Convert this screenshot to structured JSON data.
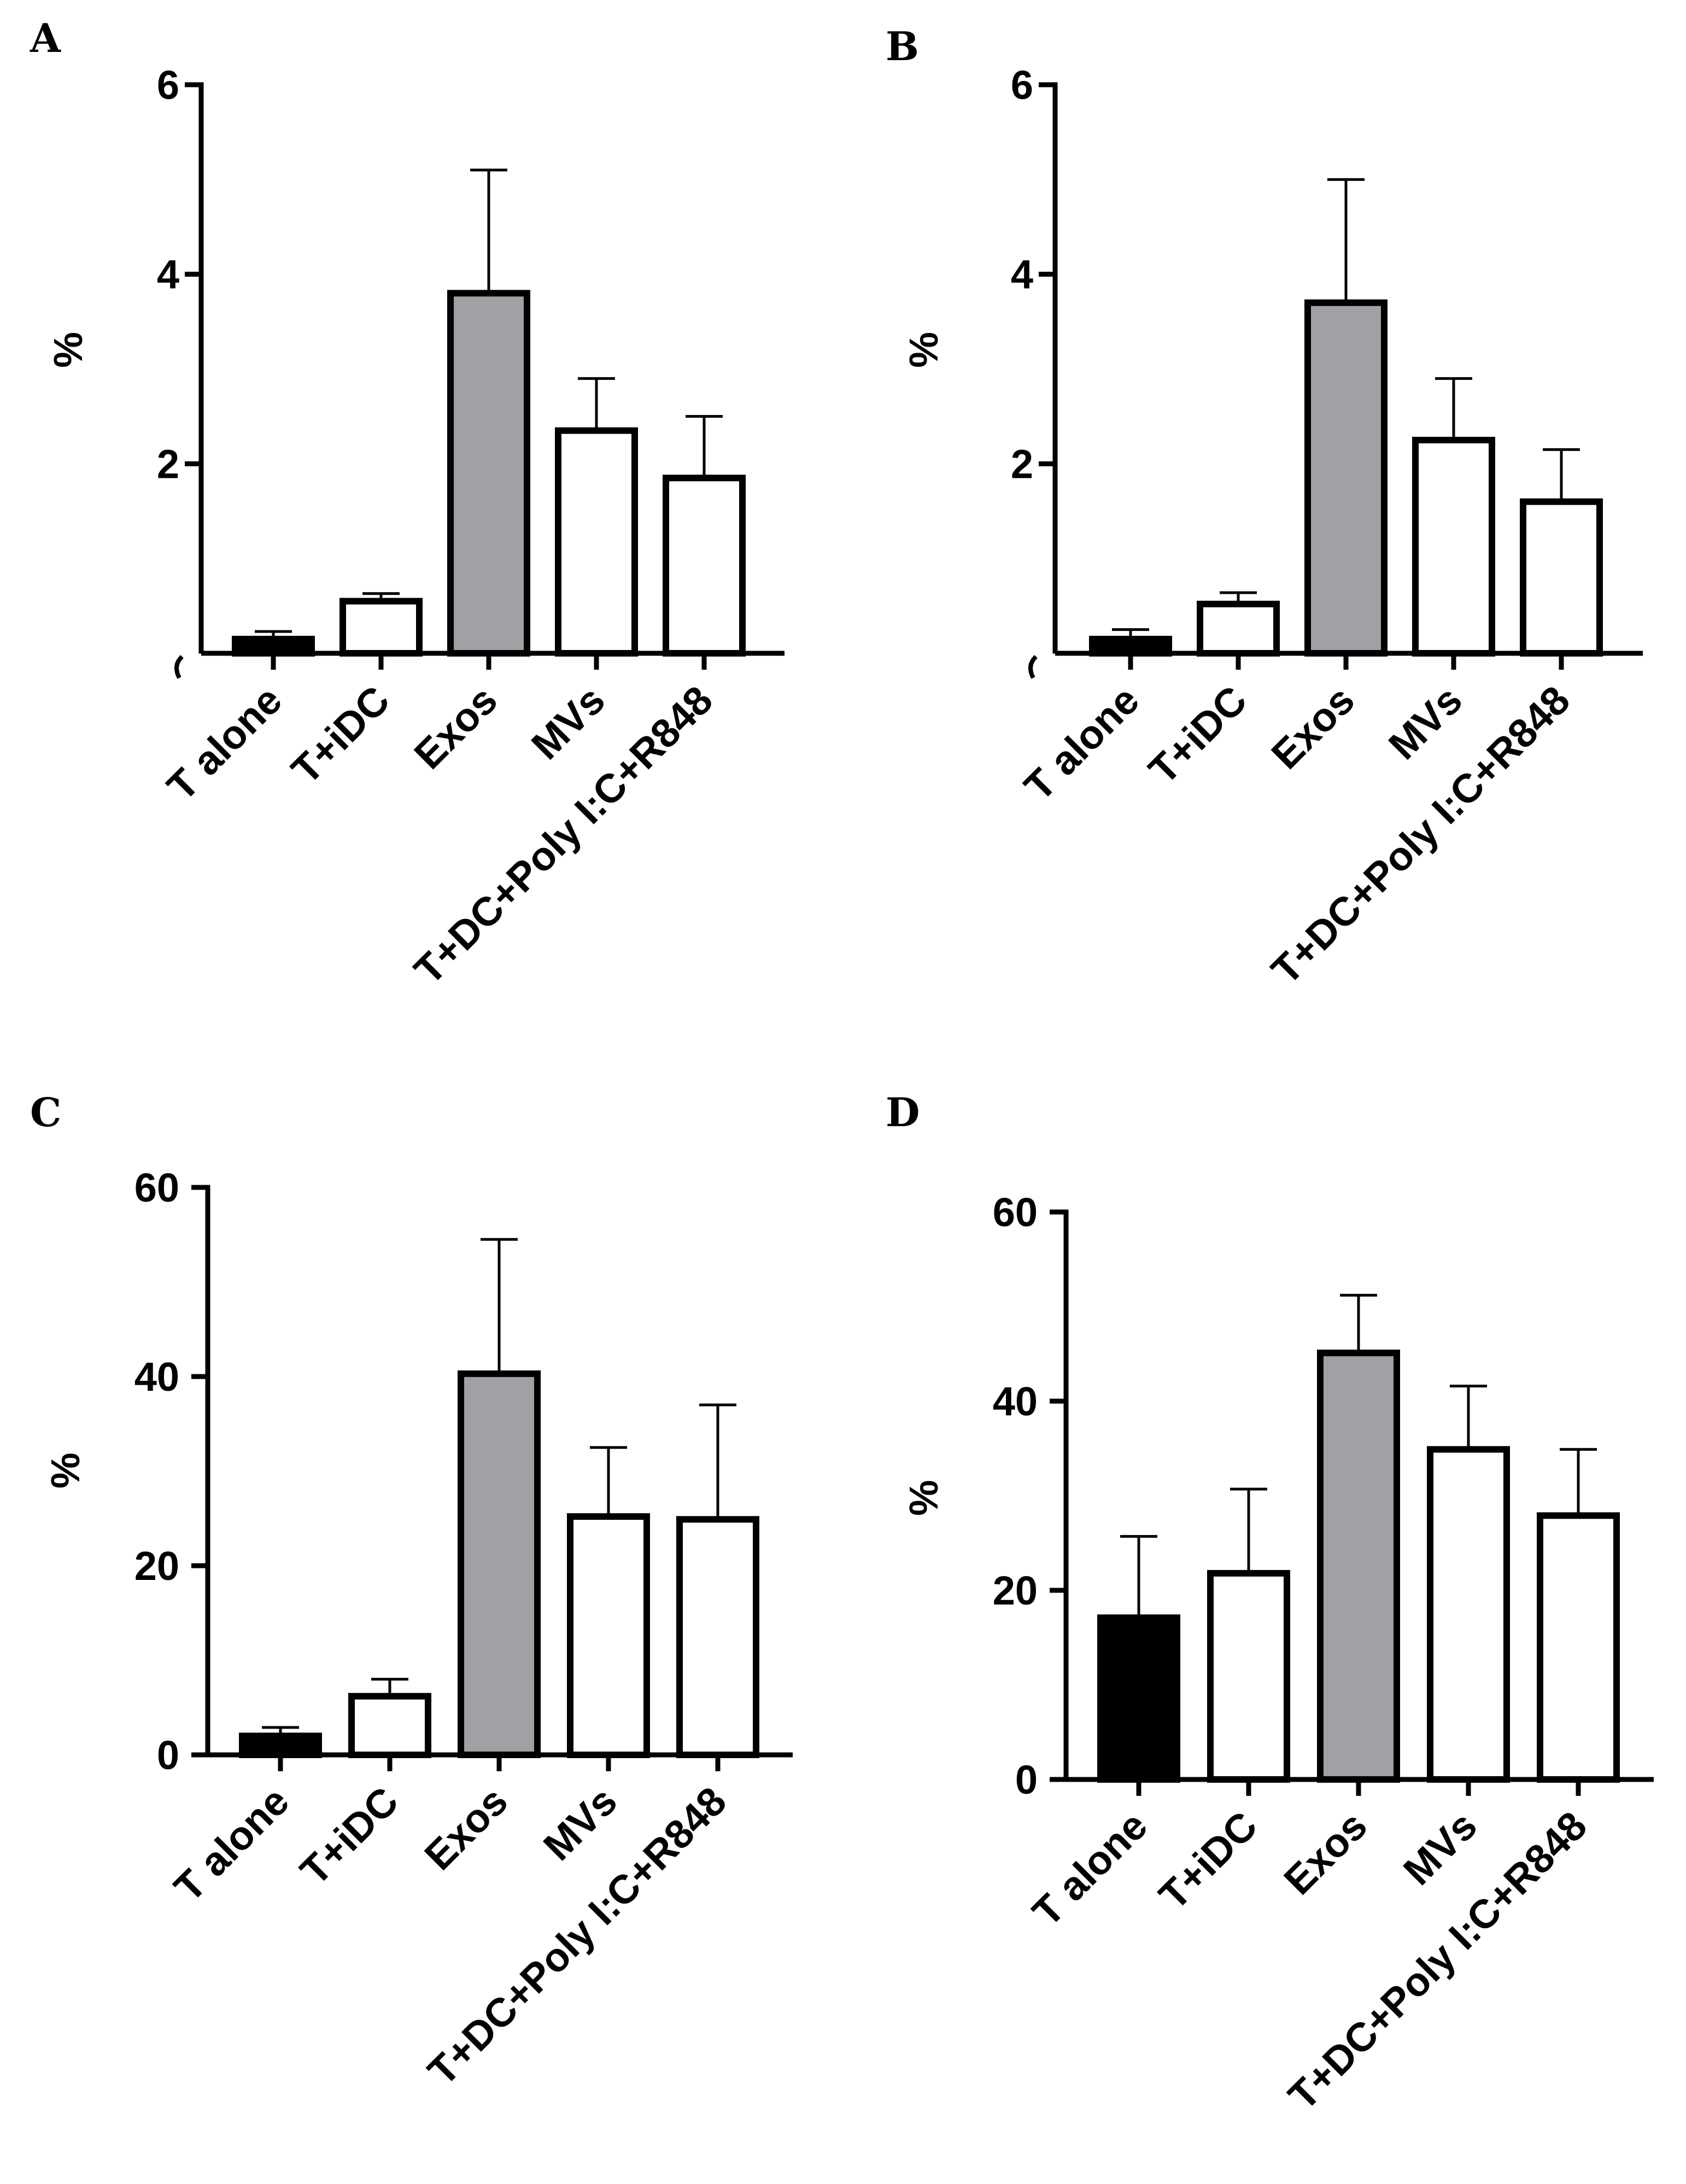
{
  "colors": {
    "black": "#000000",
    "gray": "#a0a0a5",
    "white": "#ffffff"
  },
  "chart_data": [
    {
      "panel": "A",
      "type": "bar",
      "categories": [
        "T alone",
        "T+iDC",
        "Exos",
        "MVs",
        "T+DC+Poly I:C+R848"
      ],
      "values": [
        0.15,
        0.55,
        3.8,
        2.35,
        1.85
      ],
      "errors": [
        0.08,
        0.08,
        1.3,
        0.55,
        0.65
      ],
      "fills": [
        "black",
        "white",
        "gray",
        "white",
        "white"
      ],
      "ylabel": "%",
      "ylim": [
        0,
        6
      ],
      "yticks": [
        2,
        4,
        6
      ],
      "broken_axis": true
    },
    {
      "panel": "B",
      "type": "bar",
      "categories": [
        "T alone",
        "T+iDC",
        "Exos",
        "MVs",
        "T+DC+Poly I:C+R848"
      ],
      "values": [
        0.15,
        0.52,
        3.7,
        2.25,
        1.6
      ],
      "errors": [
        0.1,
        0.12,
        1.3,
        0.65,
        0.55
      ],
      "fills": [
        "black",
        "white",
        "gray",
        "white",
        "white"
      ],
      "ylabel": "%",
      "ylim": [
        0,
        6
      ],
      "yticks": [
        2,
        4,
        6
      ],
      "broken_axis": true
    },
    {
      "panel": "C",
      "type": "bar",
      "categories": [
        "T alone",
        "T+iDC",
        "Exos",
        "MVs",
        "T+DC+Poly I:C+R848"
      ],
      "values": [
        2,
        6.2,
        40.3,
        25.2,
        24.9
      ],
      "errors": [
        0.9,
        1.8,
        14.2,
        7.3,
        12.1
      ],
      "fills": [
        "black",
        "white",
        "gray",
        "white",
        "white"
      ],
      "ylabel": "%",
      "ylim": [
        0,
        60
      ],
      "yticks": [
        0,
        20,
        40,
        60
      ],
      "broken_axis": false
    },
    {
      "panel": "D",
      "type": "bar",
      "categories": [
        "T alone",
        "T+iDC",
        "Exos",
        "MVs",
        "T+DC+Poly I:C+R848"
      ],
      "values": [
        17.1,
        21.8,
        45.1,
        34.9,
        27.9
      ],
      "errors": [
        8.6,
        8.9,
        6.1,
        6.7,
        7.0
      ],
      "fills": [
        "black",
        "white",
        "gray",
        "white",
        "white"
      ],
      "ylabel": "%",
      "ylim": [
        0,
        60
      ],
      "yticks": [
        0,
        20,
        40,
        60
      ],
      "broken_axis": false
    }
  ]
}
